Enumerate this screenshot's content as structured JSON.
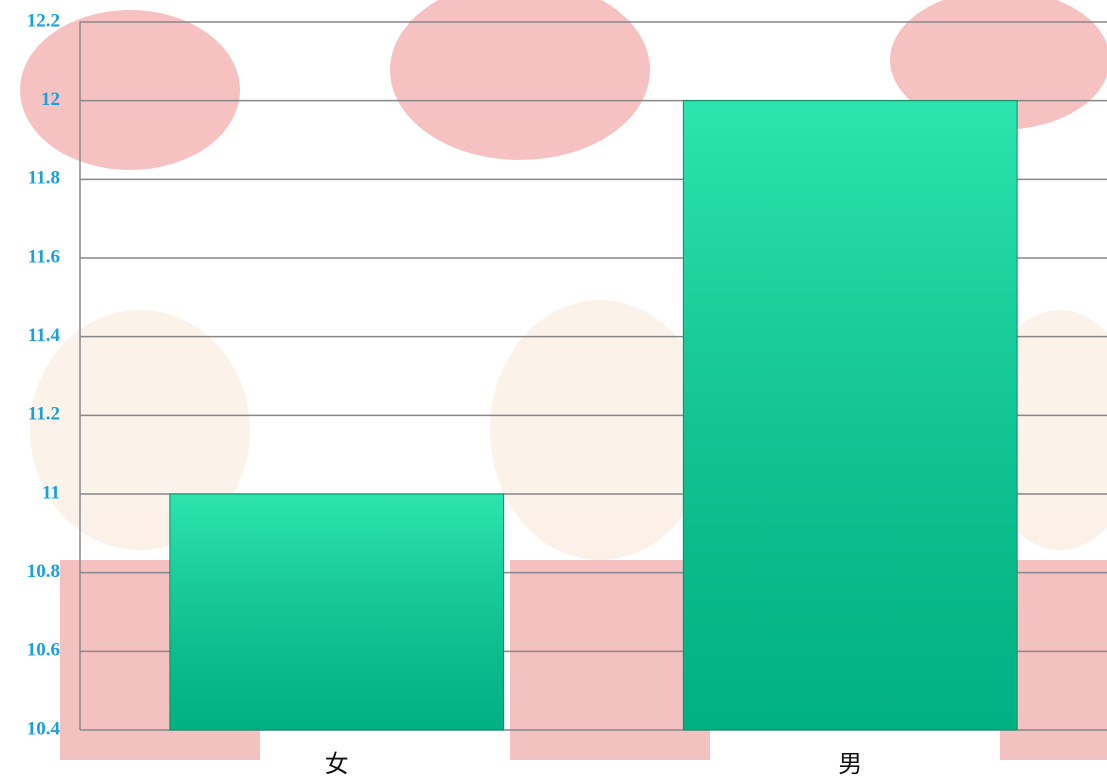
{
  "chart_data": {
    "type": "bar",
    "categories": [
      "女",
      "男"
    ],
    "values": [
      11,
      12
    ],
    "color": "#00d69c",
    "ylim": [
      10.4,
      12.2
    ],
    "yticks": [
      10.4,
      10.6,
      10.8,
      11,
      11.2,
      11.4,
      11.6,
      11.8,
      12,
      12.2
    ],
    "grid": true
  }
}
